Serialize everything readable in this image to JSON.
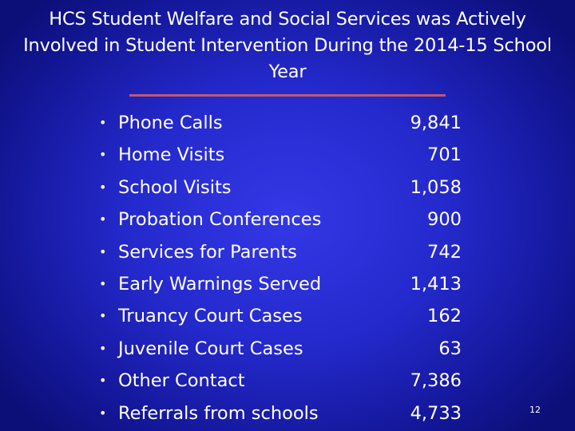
{
  "slide": {
    "title": "HCS Student Welfare and Social Services was Actively Involved in Student Intervention During the 2014-15 School Year",
    "bullet": "•",
    "items": [
      {
        "label": "Phone Calls",
        "value": "9,841"
      },
      {
        "label": "Home Visits",
        "value": "701"
      },
      {
        "label": "School Visits",
        "value": "1,058"
      },
      {
        "label": "Probation Conferences",
        "value": "900"
      },
      {
        "label": "Services for Parents",
        "value": "742"
      },
      {
        "label": "Early Warnings Served",
        "value": "1,413"
      },
      {
        "label": "Truancy Court Cases",
        "value": "162"
      },
      {
        "label": "Juvenile Court Cases",
        "value": "63"
      },
      {
        "label": "Other Contact",
        "value": "7,386"
      },
      {
        "label": "Referrals from schools",
        "value": "4,733"
      }
    ],
    "page_number": "12"
  },
  "colors": {
    "background": "#2429cc",
    "text": "#ffffff",
    "rule": "#c0596f"
  }
}
